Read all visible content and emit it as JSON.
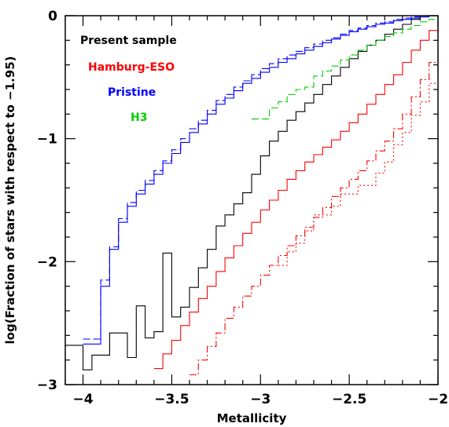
{
  "chart_data": {
    "type": "line",
    "xlabel": "Metallicity",
    "ylabel": "log(Fraction of stars with respect to −1.95)",
    "xlim": [
      -4.1,
      -2.0
    ],
    "ylim": [
      -3.0,
      0.0
    ],
    "x_ticks": [
      {
        "value": -4.0,
        "label": "−4"
      },
      {
        "value": -3.5,
        "label": "−3.5"
      },
      {
        "value": -3.0,
        "label": "−3"
      },
      {
        "value": -2.5,
        "label": "−2.5"
      },
      {
        "value": -2.0,
        "label": "−2"
      }
    ],
    "y_ticks": [
      {
        "value": 0,
        "label": "0"
      },
      {
        "value": -1,
        "label": "−1"
      },
      {
        "value": -2,
        "label": "−2"
      },
      {
        "value": -3,
        "label": "−3"
      }
    ],
    "legend": {
      "placement": "top-left",
      "entries": [
        {
          "label": "Present sample",
          "color": "#000000"
        },
        {
          "label": "Hamburg-ESO",
          "color": "#ff0000"
        },
        {
          "label": "Pristine",
          "color": "#0000ff"
        },
        {
          "label": "H3",
          "color": "#00cc00"
        }
      ]
    },
    "series": [
      {
        "name": "Present sample",
        "color": "#000000",
        "dash": "solid",
        "x": [
          -4.1,
          -4.05,
          -4.0,
          -3.95,
          -3.9,
          -3.85,
          -3.8,
          -3.75,
          -3.7,
          -3.65,
          -3.6,
          -3.55,
          -3.5,
          -3.45,
          -3.4,
          -3.35,
          -3.3,
          -3.25,
          -3.2,
          -3.15,
          -3.1,
          -3.05,
          -3.0,
          -2.95,
          -2.9,
          -2.85,
          -2.8,
          -2.75,
          -2.7,
          -2.65,
          -2.6,
          -2.55,
          -2.5,
          -2.45,
          -2.4,
          -2.35,
          -2.3,
          -2.25,
          -2.2,
          -2.15,
          -2.1,
          -2.05,
          -2.0
        ],
        "y": [
          -2.68,
          -2.68,
          -2.88,
          -2.76,
          -2.76,
          -2.58,
          -2.58,
          -2.78,
          -2.36,
          -2.62,
          -2.57,
          -1.93,
          -2.45,
          -2.37,
          -2.21,
          -2.05,
          -1.9,
          -1.71,
          -1.62,
          -1.53,
          -1.44,
          -1.29,
          -1.14,
          -1.02,
          -0.94,
          -0.85,
          -0.78,
          -0.71,
          -0.64,
          -0.56,
          -0.49,
          -0.42,
          -0.35,
          -0.29,
          -0.24,
          -0.2,
          -0.15,
          -0.11,
          -0.07,
          -0.03,
          0.0,
          0.0,
          0.0
        ]
      },
      {
        "name": "Pristine",
        "color": "#0000ff",
        "dash": "solid",
        "x": [
          -4.0,
          -3.9,
          -3.85,
          -3.8,
          -3.75,
          -3.7,
          -3.65,
          -3.6,
          -3.55,
          -3.5,
          -3.45,
          -3.4,
          -3.35,
          -3.3,
          -3.25,
          -3.2,
          -3.15,
          -3.1,
          -3.05,
          -3.0,
          -2.95,
          -2.9,
          -2.85,
          -2.8,
          -2.75,
          -2.7,
          -2.65,
          -2.6,
          -2.55,
          -2.5,
          -2.45,
          -2.4,
          -2.35,
          -2.3,
          -2.25,
          -2.2,
          -2.15,
          -2.1,
          -2.05,
          -2.0
        ],
        "y": [
          -2.67,
          -2.2,
          -1.9,
          -1.68,
          -1.55,
          -1.45,
          -1.37,
          -1.29,
          -1.2,
          -1.12,
          -1.03,
          -0.95,
          -0.88,
          -0.8,
          -0.72,
          -0.67,
          -0.61,
          -0.55,
          -0.51,
          -0.46,
          -0.42,
          -0.38,
          -0.35,
          -0.31,
          -0.28,
          -0.25,
          -0.22,
          -0.19,
          -0.16,
          -0.13,
          -0.11,
          -0.09,
          -0.07,
          -0.06,
          -0.04,
          -0.03,
          -0.02,
          -0.01,
          0.0,
          0.0
        ]
      },
      {
        "name": "Pristine (dashed)",
        "color": "#0000ff",
        "dash": "dashed",
        "x": [
          -4.0,
          -3.9,
          -3.85,
          -3.8,
          -3.75,
          -3.7,
          -3.65,
          -3.6,
          -3.55,
          -3.5,
          -3.45,
          -3.4,
          -3.35,
          -3.3,
          -3.25,
          -3.2,
          -3.15,
          -3.1,
          -3.05,
          -3.0,
          -2.95,
          -2.9,
          -2.85,
          -2.8,
          -2.75,
          -2.7,
          -2.65,
          -2.6,
          -2.55,
          -2.5,
          -2.45,
          -2.4,
          -2.35,
          -2.3,
          -2.25,
          -2.2,
          -2.15,
          -2.1,
          -2.05,
          -2.0
        ],
        "y": [
          -2.63,
          -2.15,
          -1.88,
          -1.65,
          -1.52,
          -1.42,
          -1.34,
          -1.26,
          -1.18,
          -1.09,
          -1.0,
          -0.92,
          -0.85,
          -0.77,
          -0.69,
          -0.64,
          -0.58,
          -0.53,
          -0.48,
          -0.43,
          -0.39,
          -0.35,
          -0.32,
          -0.29,
          -0.26,
          -0.23,
          -0.2,
          -0.18,
          -0.15,
          -0.12,
          -0.1,
          -0.08,
          -0.06,
          -0.05,
          -0.03,
          -0.02,
          -0.01,
          0.0,
          0.0,
          0.0
        ]
      },
      {
        "name": "H3",
        "color": "#00cc00",
        "dash": "dashed",
        "x": [
          -3.05,
          -2.95,
          -2.9,
          -2.85,
          -2.8,
          -2.75,
          -2.7,
          -2.65,
          -2.6,
          -2.55,
          -2.5,
          -2.45,
          -2.4,
          -2.35,
          -2.3,
          -2.25,
          -2.2,
          -2.15,
          -2.1,
          -2.05,
          -2.0
        ],
        "y": [
          -0.84,
          -0.75,
          -0.7,
          -0.64,
          -0.6,
          -0.58,
          -0.49,
          -0.45,
          -0.41,
          -0.36,
          -0.32,
          -0.28,
          -0.24,
          -0.2,
          -0.17,
          -0.14,
          -0.11,
          -0.08,
          -0.05,
          -0.03,
          0.0
        ]
      },
      {
        "name": "Hamburg-ESO",
        "color": "#ff0000",
        "dash": "solid",
        "x": [
          -3.6,
          -3.55,
          -3.5,
          -3.45,
          -3.4,
          -3.35,
          -3.3,
          -3.25,
          -3.2,
          -3.15,
          -3.1,
          -3.05,
          -3.0,
          -2.95,
          -2.9,
          -2.85,
          -2.8,
          -2.75,
          -2.7,
          -2.65,
          -2.6,
          -2.55,
          -2.5,
          -2.45,
          -2.4,
          -2.35,
          -2.3,
          -2.25,
          -2.2,
          -2.15,
          -2.1,
          -2.05,
          -2.0
        ],
        "y": [
          -2.87,
          -2.75,
          -2.64,
          -2.52,
          -2.41,
          -2.3,
          -2.2,
          -2.08,
          -1.97,
          -1.87,
          -1.77,
          -1.68,
          -1.58,
          -1.5,
          -1.42,
          -1.33,
          -1.26,
          -1.19,
          -1.13,
          -1.07,
          -1.01,
          -0.94,
          -0.87,
          -0.8,
          -0.72,
          -0.64,
          -0.56,
          -0.48,
          -0.38,
          -0.28,
          -0.2,
          -0.12,
          -0.05
        ]
      },
      {
        "name": "Hamburg-ESO (dash-dot)",
        "color": "#ff0000",
        "dash": "dashdot",
        "x": [
          -3.4,
          -3.35,
          -3.3,
          -3.25,
          -3.2,
          -3.15,
          -3.1,
          -3.05,
          -3.0,
          -2.95,
          -2.9,
          -2.85,
          -2.8,
          -2.75,
          -2.7,
          -2.65,
          -2.6,
          -2.55,
          -2.5,
          -2.45,
          -2.4,
          -2.35,
          -2.3,
          -2.25,
          -2.2,
          -2.15,
          -2.1,
          -2.05,
          -2.0
        ],
        "y": [
          -2.92,
          -2.8,
          -2.69,
          -2.58,
          -2.46,
          -2.37,
          -2.28,
          -2.2,
          -2.11,
          -2.03,
          -1.95,
          -1.87,
          -1.79,
          -1.72,
          -1.64,
          -1.56,
          -1.47,
          -1.4,
          -1.33,
          -1.26,
          -1.18,
          -1.1,
          -1.02,
          -0.92,
          -0.8,
          -0.66,
          -0.52,
          -0.38,
          -0.25
        ]
      },
      {
        "name": "Hamburg-ESO (dotted)",
        "color": "#ff0000",
        "dash": "dotted",
        "x": [
          -2.9,
          -2.85,
          -2.8,
          -2.75,
          -2.7,
          -2.65,
          -2.6,
          -2.55,
          -2.5,
          -2.45,
          -2.4,
          -2.35,
          -2.3,
          -2.25,
          -2.2,
          -2.15,
          -2.1,
          -2.05,
          -2.0
        ],
        "y": [
          -2.03,
          -1.92,
          -1.85,
          -1.75,
          -1.62,
          -1.62,
          -1.55,
          -1.45,
          -1.45,
          -1.38,
          -1.38,
          -1.28,
          -1.19,
          -1.05,
          -0.95,
          -0.81,
          -0.7,
          -0.55,
          -0.4
        ]
      }
    ]
  }
}
